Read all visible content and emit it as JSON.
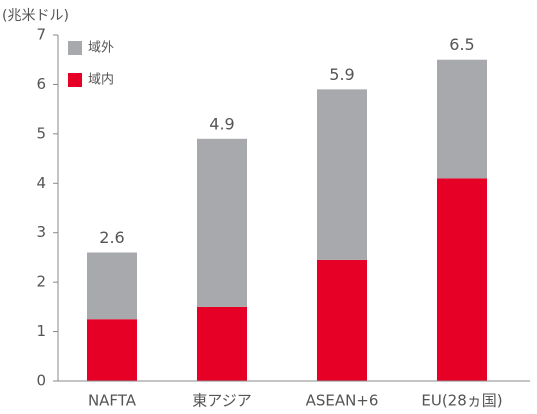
{
  "chart_data": {
    "type": "bar",
    "stacked": true,
    "y_axis_label": "(兆米ドル)",
    "categories": [
      "NAFTA",
      "東アジア",
      "ASEAN+6",
      "EU(28ヵ国)"
    ],
    "series": [
      {
        "name": "域内",
        "color": "#e60026",
        "values": [
          1.25,
          1.5,
          2.45,
          4.1
        ]
      },
      {
        "name": "域外",
        "color": "#a7a9ac",
        "values": [
          1.35,
          3.4,
          3.45,
          2.4
        ]
      }
    ],
    "total_labels": [
      2.6,
      4.9,
      5.9,
      6.5
    ],
    "ylim": [
      0,
      7
    ],
    "yticks": [
      0,
      1,
      2,
      3,
      4,
      5,
      6,
      7
    ],
    "legend": "upper left"
  }
}
